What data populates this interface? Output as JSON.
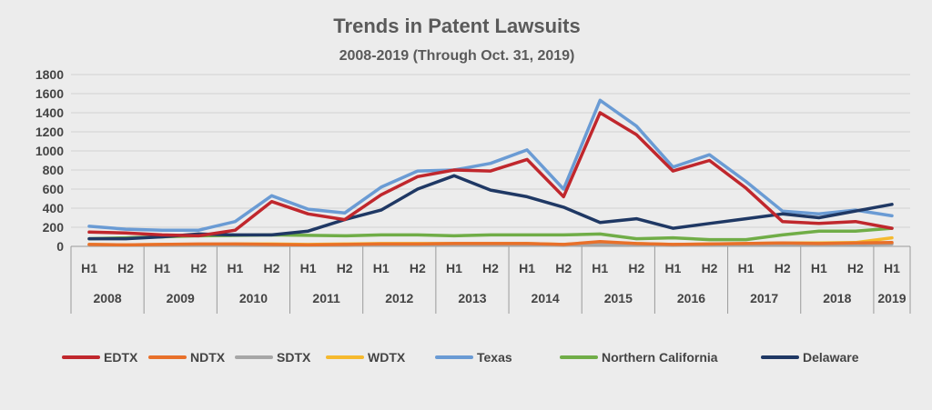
{
  "chart_data": {
    "type": "line",
    "title": "Trends in Patent Lawsuits",
    "subtitle": "2008-2019 (Through Oct. 31, 2019)",
    "ylim": [
      0,
      1800
    ],
    "yticks": [
      0,
      200,
      400,
      600,
      800,
      1000,
      1200,
      1400,
      1600,
      1800
    ],
    "grid": true,
    "legend": "bottom",
    "categories": [
      "H1",
      "H2",
      "H1",
      "H2",
      "H1",
      "H2",
      "H1",
      "H2",
      "H1",
      "H2",
      "H1",
      "H2",
      "H1",
      "H2",
      "H1",
      "H2",
      "H1",
      "H2",
      "H1",
      "H2",
      "H1",
      "H2",
      "H1"
    ],
    "years": [
      "2008",
      "2009",
      "2010",
      "2011",
      "2012",
      "2013",
      "2014",
      "2015",
      "2016",
      "2017",
      "2018",
      "2019"
    ],
    "series": [
      {
        "name": "EDTX",
        "color": "#c0272d",
        "values": [
          150,
          140,
          120,
          110,
          170,
          470,
          340,
          280,
          540,
          730,
          800,
          790,
          910,
          520,
          1400,
          1170,
          790,
          900,
          610,
          260,
          240,
          260,
          190
        ]
      },
      {
        "name": "NDTX",
        "color": "#e8702a",
        "values": [
          20,
          15,
          20,
          25,
          25,
          20,
          15,
          20,
          25,
          25,
          30,
          30,
          30,
          20,
          50,
          30,
          20,
          25,
          30,
          35,
          30,
          35,
          40
        ]
      },
      {
        "name": "SDTX",
        "color": "#a6a6a6",
        "values": [
          10,
          10,
          10,
          10,
          10,
          10,
          10,
          10,
          15,
          15,
          15,
          15,
          15,
          10,
          20,
          15,
          10,
          15,
          15,
          20,
          15,
          20,
          25
        ]
      },
      {
        "name": "WDTX",
        "color": "#f5b92e",
        "values": [
          20,
          15,
          20,
          20,
          25,
          25,
          20,
          25,
          30,
          30,
          30,
          30,
          30,
          20,
          40,
          30,
          20,
          25,
          30,
          35,
          35,
          40,
          90
        ]
      },
      {
        "name": "Texas",
        "color": "#6a9bd4",
        "values": [
          210,
          180,
          170,
          170,
          260,
          530,
          390,
          350,
          620,
          790,
          800,
          870,
          1010,
          600,
          1530,
          1260,
          830,
          960,
          680,
          370,
          340,
          380,
          320
        ]
      },
      {
        "name": "Northern California",
        "color": "#70ad47",
        "values": [
          80,
          90,
          100,
          110,
          115,
          120,
          115,
          110,
          120,
          120,
          110,
          120,
          120,
          120,
          130,
          80,
          90,
          70,
          70,
          120,
          160,
          160,
          190
        ]
      },
      {
        "name": "Delaware",
        "color": "#1f3864",
        "values": [
          80,
          80,
          100,
          130,
          120,
          120,
          160,
          280,
          380,
          600,
          740,
          590,
          520,
          410,
          250,
          290,
          190,
          240,
          290,
          340,
          300,
          370,
          440
        ]
      }
    ]
  }
}
